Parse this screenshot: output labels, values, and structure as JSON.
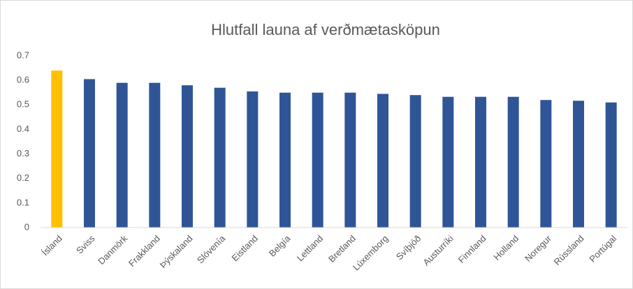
{
  "chart_data": {
    "type": "bar",
    "title": "Hlutfall launa af verðmætasköpun",
    "categories": [
      "Ísland",
      "Sviss",
      "Danmörk",
      "Frakkland",
      "Þýskaland",
      "Slóvenía",
      "Eistland",
      "Belgía",
      "Lettland",
      "Bretland",
      "Lúxemborg",
      "Svíþjóð",
      "Austurríki",
      "Finnland",
      "Holland",
      "Noregur",
      "Rússland",
      "Portúgal"
    ],
    "values": [
      0.64,
      0.605,
      0.59,
      0.59,
      0.58,
      0.57,
      0.555,
      0.55,
      0.55,
      0.55,
      0.545,
      0.54,
      0.533,
      0.533,
      0.533,
      0.52,
      0.517,
      0.51
    ],
    "colors": [
      "#ffc000",
      "#2f5597",
      "#2f5597",
      "#2f5597",
      "#2f5597",
      "#2f5597",
      "#2f5597",
      "#2f5597",
      "#2f5597",
      "#2f5597",
      "#2f5597",
      "#2f5597",
      "#2f5597",
      "#2f5597",
      "#2f5597",
      "#2f5597",
      "#2f5597",
      "#2f5597"
    ],
    "ylim": [
      0,
      0.7
    ],
    "yticks": [
      0,
      0.1,
      0.2,
      0.3,
      0.4,
      0.5,
      0.6,
      0.7
    ],
    "grid": false
  }
}
